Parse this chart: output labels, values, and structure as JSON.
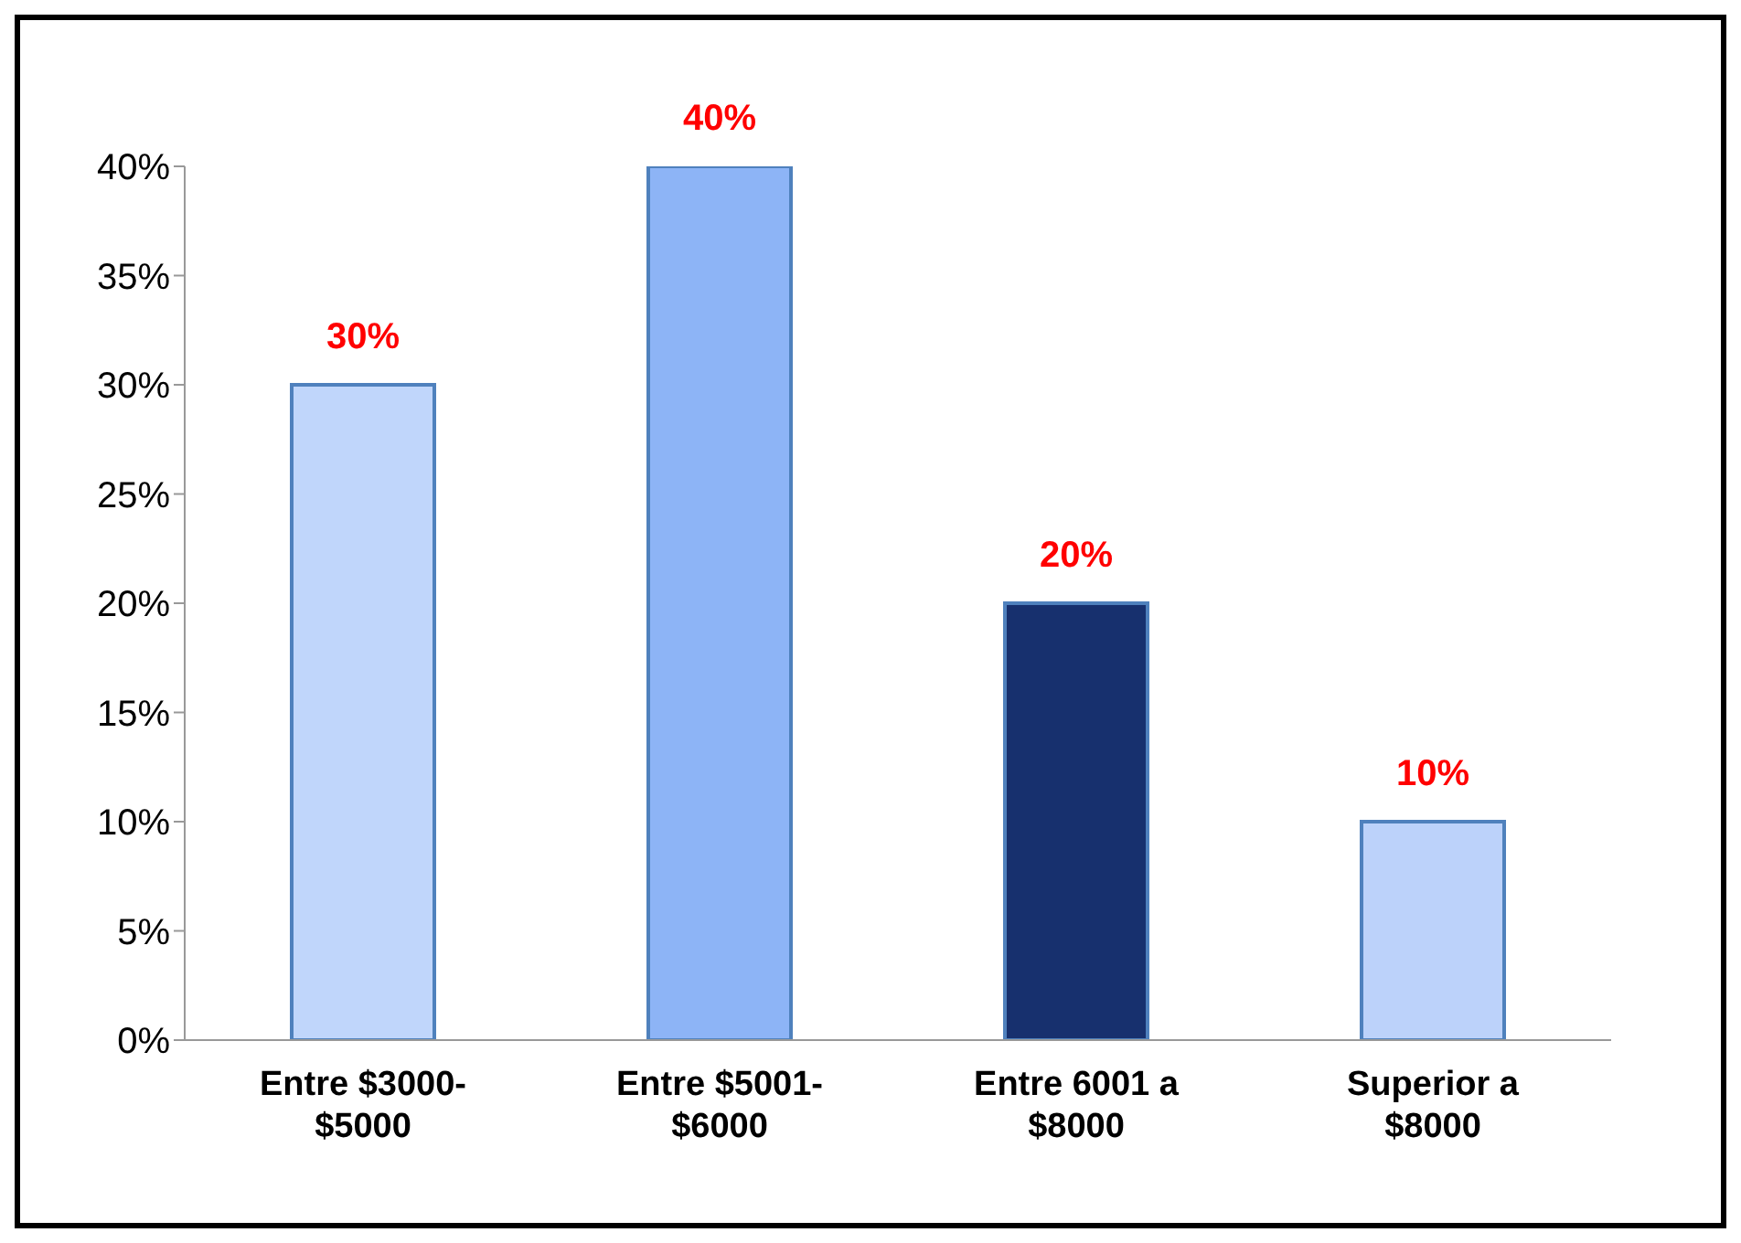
{
  "chart_data": {
    "type": "bar",
    "categories": [
      "Entre $3000-$5000",
      "Entre $5001-$6000",
      "Entre 6001 a $8000",
      "Superior a $8000"
    ],
    "values": [
      30,
      40,
      20,
      10
    ],
    "colors": [
      "#c0d6fb",
      "#8db4f6",
      "#17306e",
      "#bcd2fa"
    ],
    "value_labels": [
      "30%",
      "40%",
      "20%",
      "10%"
    ],
    "ylim": [
      0,
      40
    ],
    "yticks": [
      {
        "value": 0,
        "label": "0%"
      },
      {
        "value": 5,
        "label": "5%"
      },
      {
        "value": 10,
        "label": "10%"
      },
      {
        "value": 15,
        "label": "15%"
      },
      {
        "value": 20,
        "label": "20%"
      },
      {
        "value": 25,
        "label": "25%"
      },
      {
        "value": 30,
        "label": "30%"
      },
      {
        "value": 35,
        "label": "35%"
      },
      {
        "value": 40,
        "label": "40%"
      }
    ],
    "grid": false
  }
}
